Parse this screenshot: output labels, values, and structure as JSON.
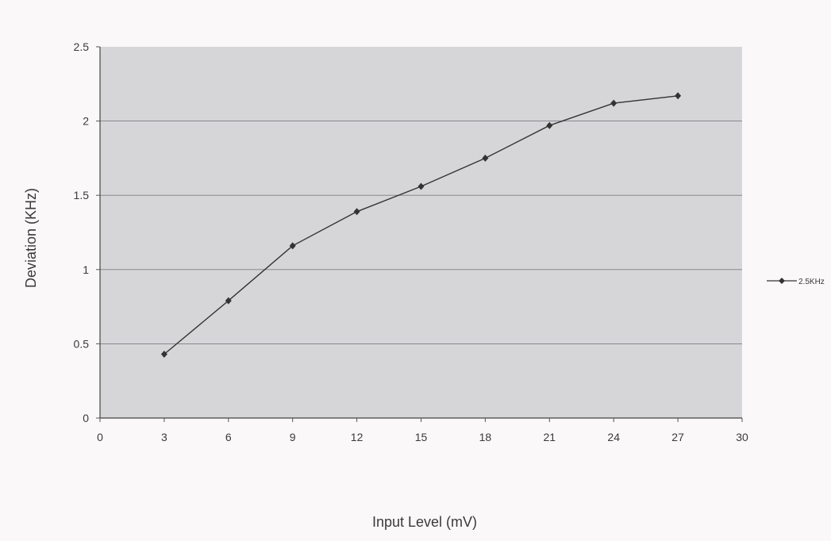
{
  "chart_data": {
    "type": "line",
    "title": "",
    "xlabel": "Input Level (mV)",
    "ylabel": "Deviation (KHz)",
    "xlim": [
      0,
      30
    ],
    "ylim": [
      0,
      2.5
    ],
    "x_ticks": [
      "0",
      "3",
      "6",
      "9",
      "12",
      "15",
      "18",
      "21",
      "24",
      "27",
      "30"
    ],
    "y_ticks": [
      "0",
      "0.5",
      "1",
      "1.5",
      "2",
      "2.5"
    ],
    "grid": "horizontal",
    "legend_position": "right",
    "plot_background": "#d6d6d9",
    "series": [
      {
        "name": "2.5KHz",
        "color": "#333333",
        "marker": "diamond",
        "x": [
          3,
          6,
          9,
          12,
          15,
          18,
          21,
          24,
          27
        ],
        "y": [
          0.43,
          0.79,
          1.16,
          1.39,
          1.56,
          1.75,
          1.97,
          2.12,
          2.17
        ]
      }
    ]
  }
}
